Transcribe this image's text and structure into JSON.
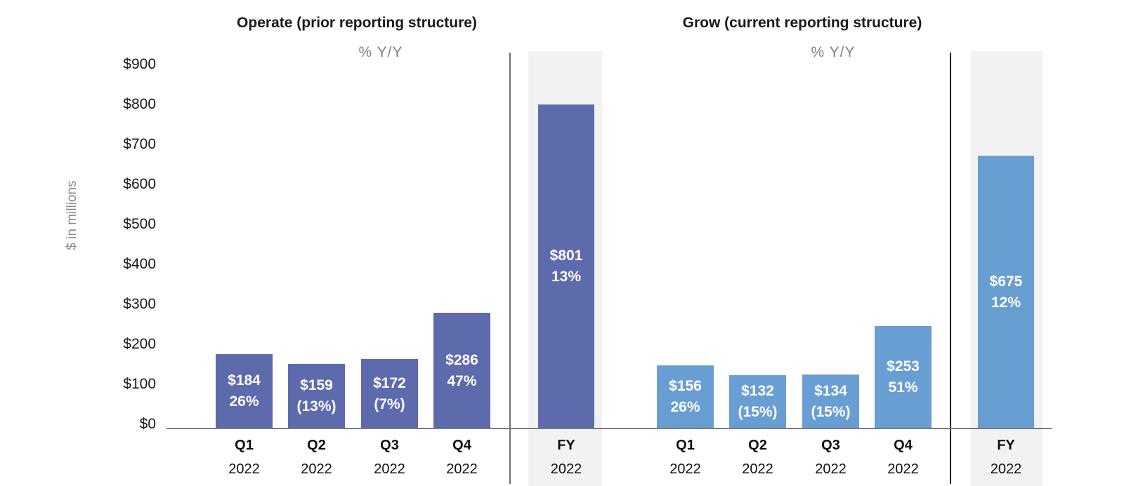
{
  "chart_data": {
    "type": "bar",
    "ylabel": "$ in millions",
    "ylim": [
      0,
      900
    ],
    "y_tick_labels": [
      "$900",
      "$800",
      "$700",
      "$600",
      "$500",
      "$400",
      "$300",
      "$200",
      "$100",
      "$0"
    ],
    "grid": false,
    "legend": "none",
    "panels": [
      {
        "title": "Operate (prior reporting structure)",
        "subtitle": "% Y/Y",
        "color": "#5d6bad",
        "categories": [
          "Q1 2022",
          "Q2 2022",
          "Q3 2022",
          "Q4 2022",
          "FY 2022"
        ],
        "x_ticks": [
          [
            "Q1",
            "2022"
          ],
          [
            "Q2",
            "2022"
          ],
          [
            "Q3",
            "2022"
          ],
          [
            "Q4",
            "2022"
          ],
          [
            "FY",
            "2022"
          ]
        ],
        "values": [
          184,
          159,
          172,
          286,
          801
        ],
        "bar_labels": [
          [
            "$184",
            "26%"
          ],
          [
            "$159",
            "(13%)"
          ],
          [
            "$172",
            "(7%)"
          ],
          [
            "$286",
            "47%"
          ],
          [
            "$801",
            "13%"
          ]
        ]
      },
      {
        "title": "Grow (current reporting structure)",
        "subtitle": "% Y/Y",
        "color": "#699ed2",
        "categories": [
          "Q1 2022",
          "Q2 2022",
          "Q3 2022",
          "Q4 2022",
          "FY 2022"
        ],
        "x_ticks": [
          [
            "Q1",
            "2022"
          ],
          [
            "Q2",
            "2022"
          ],
          [
            "Q3",
            "2022"
          ],
          [
            "Q4",
            "2022"
          ],
          [
            "FY",
            "2022"
          ]
        ],
        "values": [
          156,
          132,
          134,
          253,
          675
        ],
        "bar_labels": [
          [
            "$156",
            "26%"
          ],
          [
            "$132",
            "(15%)"
          ],
          [
            "$134",
            "(15%)"
          ],
          [
            "$253",
            "51%"
          ],
          [
            "$675",
            "12%"
          ]
        ]
      }
    ]
  }
}
